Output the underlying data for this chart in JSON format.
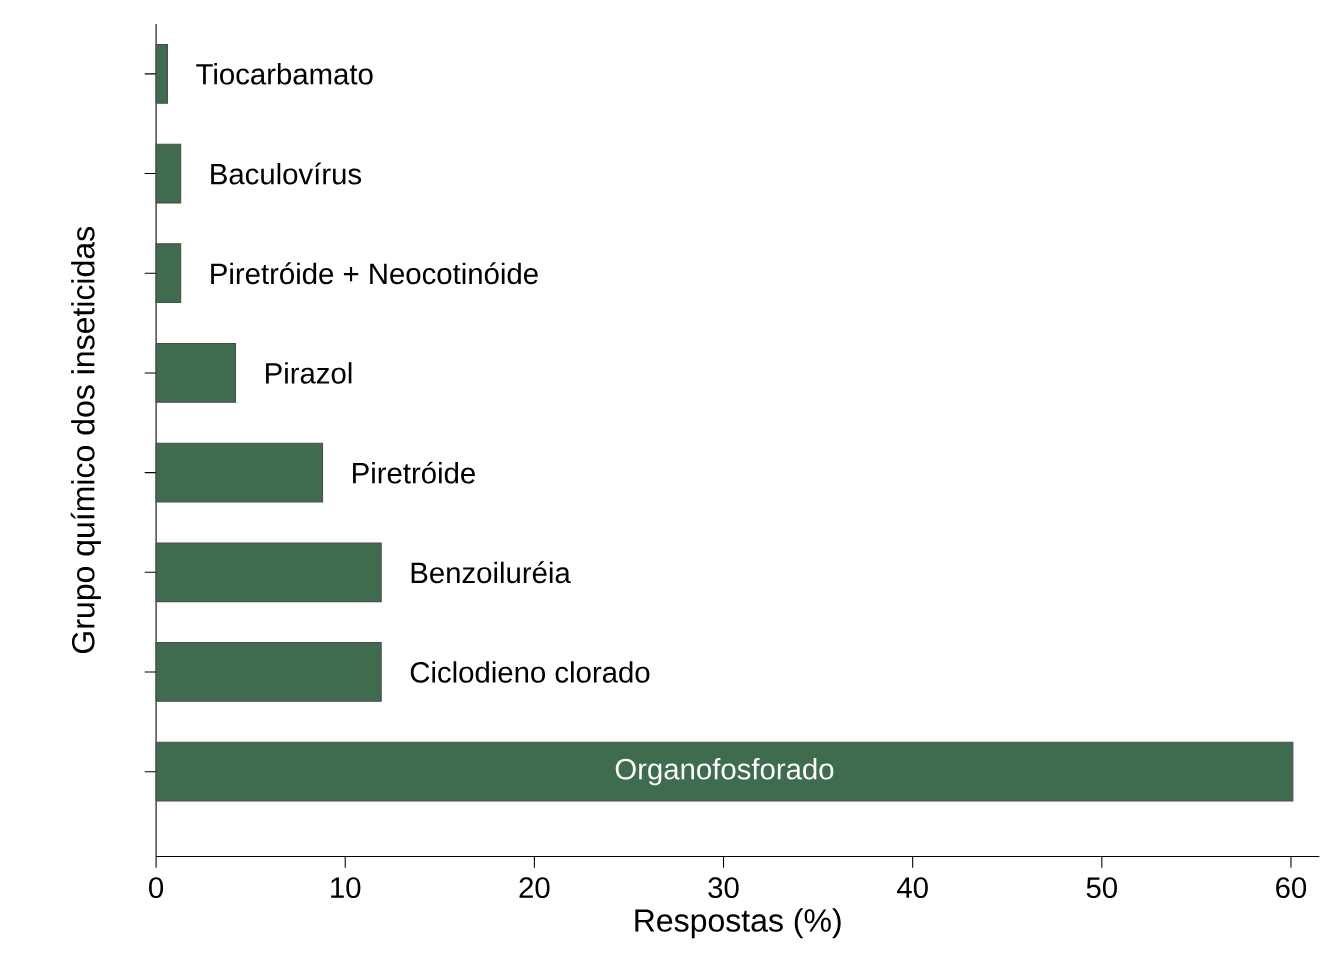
{
  "chart_data": {
    "type": "bar",
    "orientation": "horizontal",
    "xlabel": "Respostas (%)",
    "ylabel": "Grupo químico dos inseticidas",
    "categories": [
      "Tiocarbamato",
      "Baculovírus",
      "Piretróide + Neocotinóide",
      "Pirazol",
      "Piretróide",
      "Benzoiluréia",
      "Ciclodieno clorado",
      "Organofosforado"
    ],
    "values": [
      0.6,
      1.3,
      1.3,
      4.2,
      8.8,
      11.9,
      11.9,
      60.1
    ],
    "color": "#3f6b4f",
    "xlim": [
      0,
      61.5
    ],
    "xticks": [
      0,
      10,
      20,
      30,
      40,
      50,
      60
    ],
    "grid": false
  }
}
